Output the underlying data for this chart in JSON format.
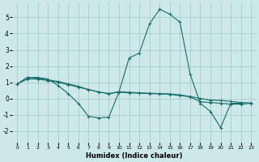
{
  "xlabel": "Humidex (Indice chaleur)",
  "bg_color": "#cce8e8",
  "grid_color": "#aacccc",
  "line_color": "#1a6b6b",
  "xlim": [
    -0.5,
    23.5
  ],
  "ylim": [
    -2.7,
    5.9
  ],
  "yticks": [
    -2,
    -1,
    0,
    1,
    2,
    3,
    4,
    5
  ],
  "xticks": [
    0,
    1,
    2,
    3,
    4,
    5,
    6,
    7,
    8,
    9,
    10,
    11,
    12,
    13,
    14,
    15,
    16,
    17,
    18,
    19,
    20,
    21,
    22,
    23
  ],
  "series": [
    {
      "x": [
        0,
        1,
        2,
        3,
        4,
        5,
        6,
        7,
        8,
        9,
        10,
        11,
        12,
        13,
        14,
        15,
        16,
        17,
        18,
        19,
        20,
        21,
        22
      ],
      "y": [
        0.9,
        1.3,
        1.3,
        1.2,
        0.8,
        0.3,
        -0.3,
        -1.1,
        -1.2,
        -1.15,
        0.4,
        2.5,
        2.8,
        4.6,
        5.5,
        5.2,
        4.7,
        1.5,
        -0.3,
        -0.8,
        -1.8,
        -0.3,
        -0.3
      ]
    },
    {
      "x": [
        0,
        1,
        2,
        3,
        4,
        5,
        6,
        7,
        8,
        9,
        10,
        11,
        12,
        13,
        14,
        15,
        16,
        17,
        18,
        19,
        20,
        21,
        22,
        23
      ],
      "y": [
        0.9,
        1.2,
        1.2,
        1.1,
        1.0,
        0.85,
        0.7,
        0.55,
        0.4,
        0.3,
        0.38,
        0.35,
        0.32,
        0.3,
        0.28,
        0.25,
        0.18,
        0.1,
        -0.2,
        -0.25,
        -0.3,
        -0.35,
        -0.35,
        -0.3
      ]
    },
    {
      "x": [
        0,
        1,
        2,
        3,
        4,
        5,
        6,
        7,
        8,
        9,
        10,
        11,
        12,
        13,
        14,
        15,
        16,
        17,
        18,
        19,
        20,
        21,
        22,
        23
      ],
      "y": [
        0.9,
        1.3,
        1.25,
        1.15,
        1.05,
        0.9,
        0.75,
        0.55,
        0.4,
        0.3,
        0.42,
        0.38,
        0.35,
        0.32,
        0.3,
        0.28,
        0.22,
        0.12,
        0.0,
        -0.1,
        -0.12,
        -0.18,
        -0.25,
        -0.28
      ]
    }
  ]
}
